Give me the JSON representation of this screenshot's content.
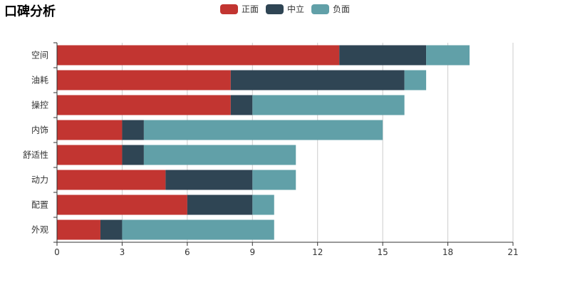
{
  "chart_data": {
    "type": "bar",
    "orientation": "horizontal",
    "stacked": true,
    "title": "口碑分析",
    "categories": [
      "空间",
      "油耗",
      "操控",
      "内饰",
      "舒适性",
      "动力",
      "配置",
      "外观"
    ],
    "series": [
      {
        "name": "正面",
        "color": "#c23531",
        "values": [
          13,
          8,
          8,
          3,
          3,
          5,
          6,
          2
        ]
      },
      {
        "name": "中立",
        "color": "#2f4554",
        "values": [
          4,
          8,
          1,
          1,
          1,
          4,
          3,
          1
        ]
      },
      {
        "name": "负面",
        "color": "#61a0a8",
        "values": [
          2,
          1,
          7,
          11,
          7,
          2,
          1,
          7
        ]
      }
    ],
    "xlim": [
      0,
      21
    ],
    "xticks": [
      0,
      3,
      6,
      9,
      12,
      15,
      18,
      21
    ],
    "grid": true,
    "legend_position": "top-center"
  }
}
